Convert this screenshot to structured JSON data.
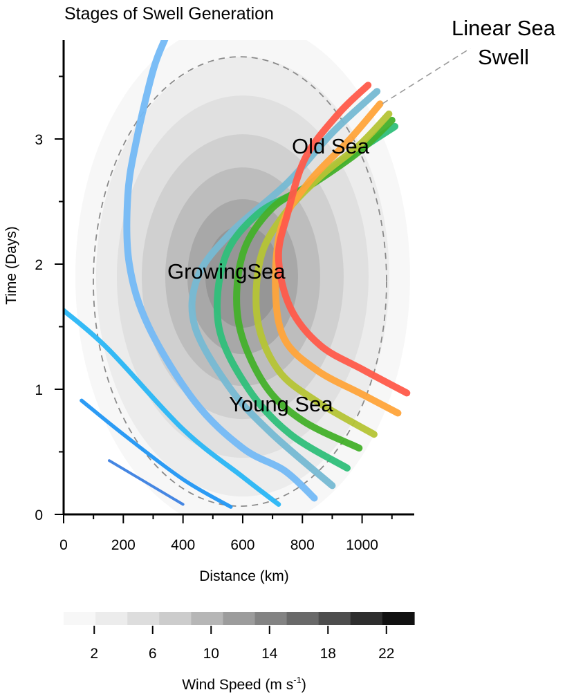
{
  "chart_data": {
    "type": "line",
    "title": "Stages of Swell Generation",
    "xlabel": "Distance (km)",
    "ylabel": "Time (Days)",
    "xlim": [
      0,
      1180
    ],
    "ylim": [
      0,
      3.8
    ],
    "x_ticks": [
      "0",
      "200",
      "400",
      "600",
      "800",
      "1000"
    ],
    "y_ticks": [
      "0",
      "1",
      "2",
      "3"
    ],
    "grid": false,
    "wind_field": {
      "center": [
        600,
        1.9
      ],
      "levels": [
        2,
        4,
        6,
        8,
        10,
        12
      ]
    },
    "storm_boundary": {
      "center": [
        600,
        1.9
      ],
      "style": "dashed"
    },
    "stage_labels": [
      "Young Sea",
      "GrowingSea",
      "Old Sea"
    ],
    "callout": {
      "line1": "Linear Sea",
      "line2": "Swell"
    },
    "colorbar": {
      "label_main": "Wind Speed (m s",
      "label_sup": "-1",
      "label_end": ")",
      "ticks": [
        "2",
        "6",
        "10",
        "14",
        "18",
        "22"
      ],
      "range": [
        0,
        24
      ],
      "bins": 11,
      "colors": [
        "#f7f7f7",
        "#ececec",
        "#dddddd",
        "#cccccc",
        "#b6b6b6",
        "#9c9c9c",
        "#838383",
        "#696969",
        "#4d4d4d",
        "#2e2e2e",
        "#111111"
      ]
    },
    "series": [
      {
        "color": "#3b7fe0",
        "points": [
          [
            153,
            0.43
          ],
          [
            400,
            0.08
          ]
        ]
      },
      {
        "color": "#2196f3",
        "points": [
          [
            60,
            0.91
          ],
          [
            200,
            0.64
          ],
          [
            400,
            0.28
          ],
          [
            560,
            0.06
          ]
        ]
      },
      {
        "color": "#29b6f6",
        "points": [
          [
            0,
            1.63
          ],
          [
            150,
            1.32
          ],
          [
            400,
            0.68
          ],
          [
            600,
            0.3
          ],
          [
            720,
            0.08
          ]
        ]
      },
      {
        "color": "#74b9f5",
        "points": [
          [
            340,
            3.8
          ],
          [
            300,
            3.55
          ],
          [
            245,
            3.0
          ],
          [
            215,
            2.55
          ],
          [
            220,
            2.0
          ],
          [
            285,
            1.5
          ],
          [
            440,
            0.9
          ],
          [
            600,
            0.53
          ],
          [
            740,
            0.35
          ],
          [
            840,
            0.13
          ]
        ]
      },
      {
        "color": "#76b9d3",
        "points": [
          [
            1050,
            3.38
          ],
          [
            900,
            3.05
          ],
          [
            750,
            2.65
          ],
          [
            560,
            2.25
          ],
          [
            450,
            1.9
          ],
          [
            440,
            1.5
          ],
          [
            560,
            1.0
          ],
          [
            700,
            0.64
          ],
          [
            900,
            0.23
          ]
        ]
      },
      {
        "color": "#2fbf7a",
        "points": [
          [
            1110,
            3.1
          ],
          [
            950,
            2.85
          ],
          [
            800,
            2.6
          ],
          [
            650,
            2.4
          ],
          [
            540,
            2.05
          ],
          [
            520,
            1.5
          ],
          [
            620,
            1.0
          ],
          [
            760,
            0.64
          ],
          [
            950,
            0.37
          ]
        ]
      },
      {
        "color": "#43b02a",
        "points": [
          [
            1100,
            3.15
          ],
          [
            990,
            2.9
          ],
          [
            840,
            2.65
          ],
          [
            700,
            2.45
          ],
          [
            600,
            2.08
          ],
          [
            585,
            1.55
          ],
          [
            670,
            1.05
          ],
          [
            800,
            0.75
          ],
          [
            990,
            0.53
          ]
        ]
      },
      {
        "color": "#b5c435",
        "points": [
          [
            1090,
            3.2
          ],
          [
            990,
            2.95
          ],
          [
            860,
            2.7
          ],
          [
            740,
            2.4
          ],
          [
            660,
            2.05
          ],
          [
            650,
            1.55
          ],
          [
            720,
            1.15
          ],
          [
            850,
            0.9
          ],
          [
            1040,
            0.64
          ]
        ]
      },
      {
        "color": "#ffa43a",
        "points": [
          [
            1060,
            3.28
          ],
          [
            960,
            3.0
          ],
          [
            820,
            2.65
          ],
          [
            730,
            2.3
          ],
          [
            710,
            1.8
          ],
          [
            740,
            1.4
          ],
          [
            850,
            1.15
          ],
          [
            1000,
            0.96
          ],
          [
            1120,
            0.81
          ]
        ]
      },
      {
        "color": "#ff5a4a",
        "points": [
          [
            1020,
            3.43
          ],
          [
            920,
            3.2
          ],
          [
            810,
            2.85
          ],
          [
            750,
            2.4
          ],
          [
            720,
            2.05
          ],
          [
            760,
            1.65
          ],
          [
            860,
            1.35
          ],
          [
            1000,
            1.16
          ],
          [
            1150,
            0.97
          ]
        ]
      }
    ]
  }
}
